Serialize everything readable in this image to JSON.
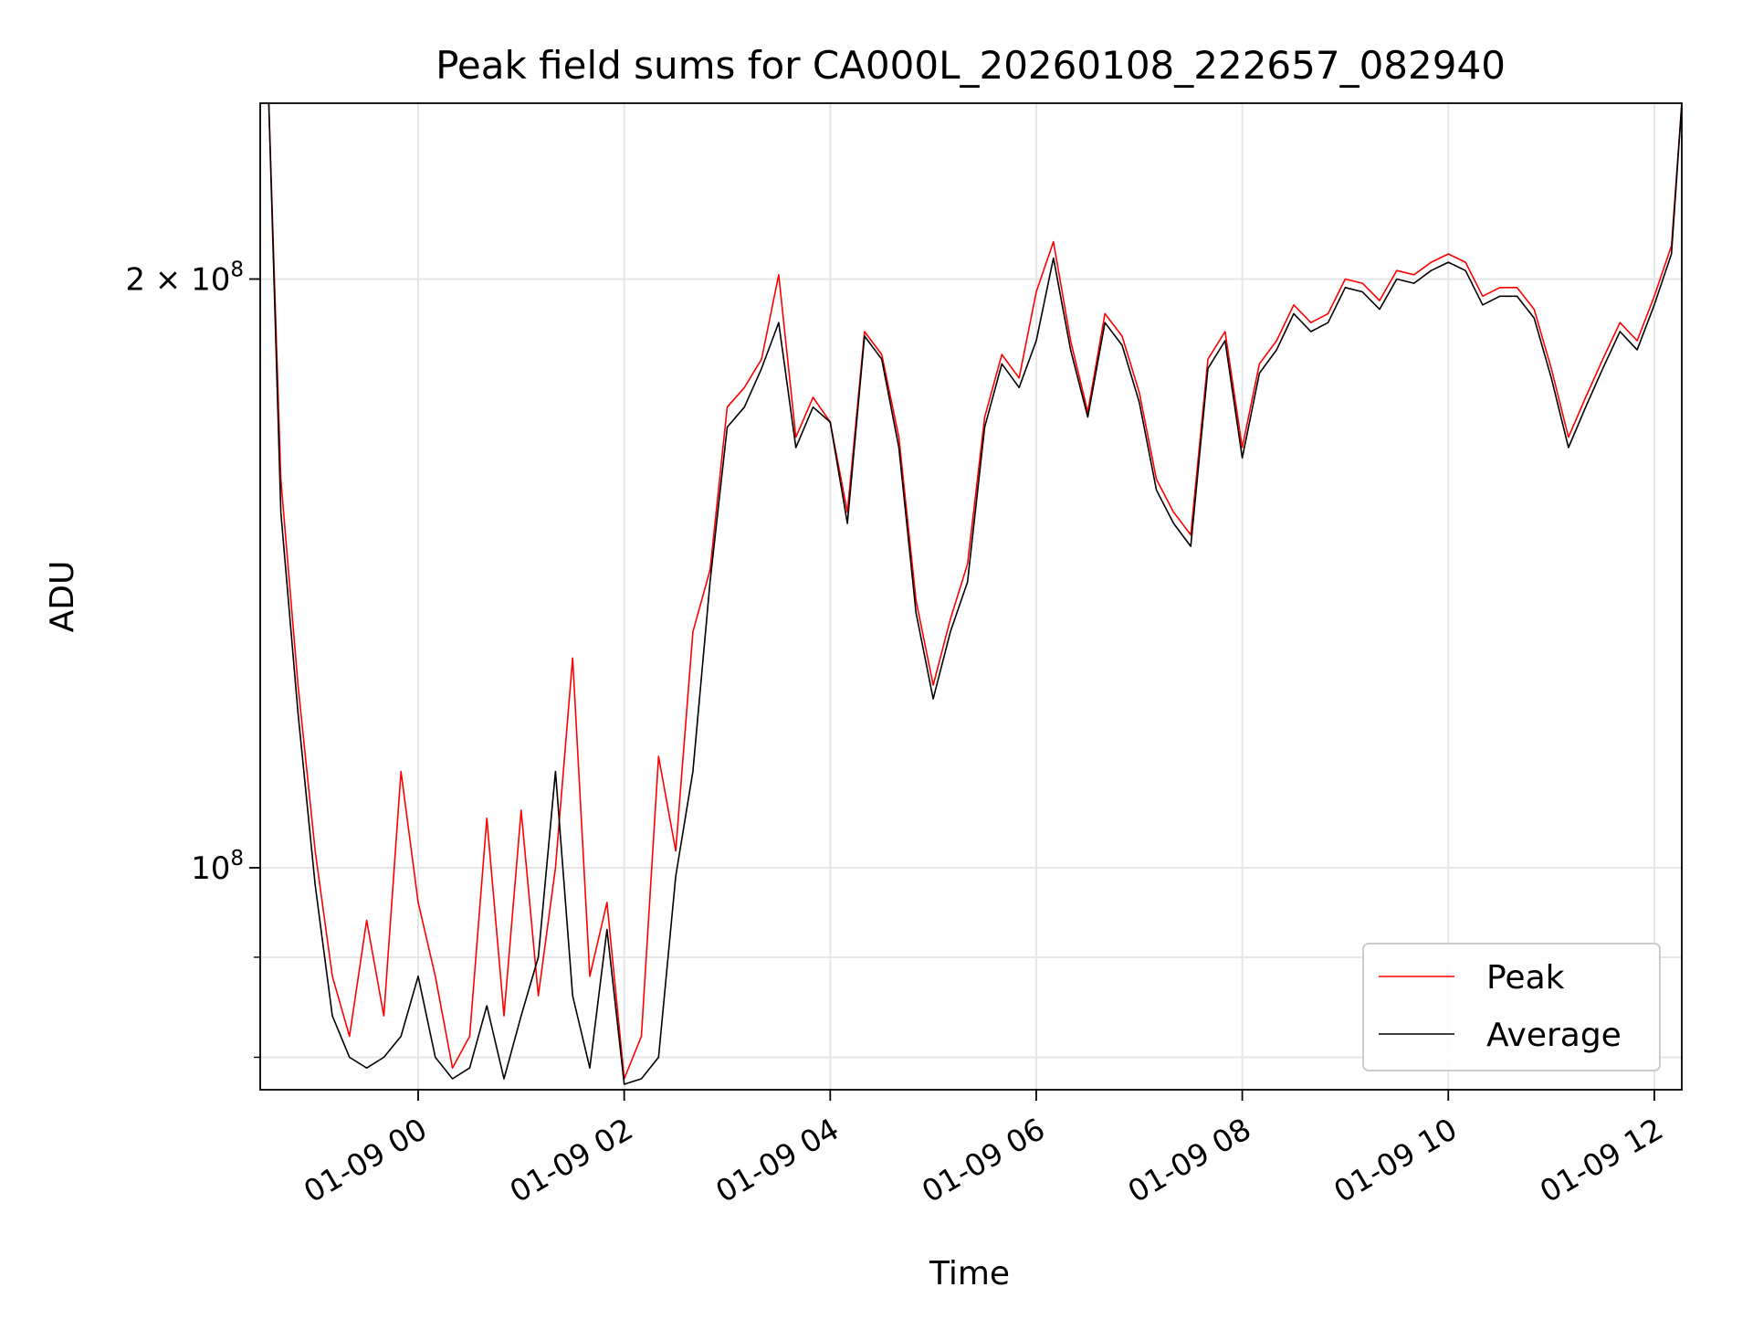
{
  "chart_data": {
    "type": "line",
    "title": "Peak field sums for CA000L_20260108_222657_082940",
    "xlabel": "Time",
    "ylabel": "ADU",
    "y_scale": "log",
    "ylim": [
      77000000,
      246000000
    ],
    "xlim": [
      "01-08 22:28",
      "01-09 12:16"
    ],
    "x_ticks": [
      {
        "value": "01-09 00:00",
        "label": "01-09 00"
      },
      {
        "value": "01-09 02:00",
        "label": "01-09 02"
      },
      {
        "value": "01-09 04:00",
        "label": "01-09 04"
      },
      {
        "value": "01-09 06:00",
        "label": "01-09 06"
      },
      {
        "value": "01-09 08:00",
        "label": "01-09 08"
      },
      {
        "value": "01-09 10:00",
        "label": "01-09 10"
      },
      {
        "value": "01-09 12:00",
        "label": "01-09 12"
      }
    ],
    "y_ticks_major": [
      {
        "value": 100000000,
        "label_base": "10",
        "label_exp": "8",
        "label_coef": ""
      },
      {
        "value": 200000000,
        "label_base": "10",
        "label_exp": "8",
        "label_coef": "2 × "
      }
    ],
    "y_ticks_minor": [
      80000000,
      90000000
    ],
    "grid": true,
    "legend_position": "bottom-right",
    "x": [
      "01-08 22:33",
      "01-08 22:40",
      "01-08 22:50",
      "01-08 23:00",
      "01-08 23:10",
      "01-08 23:20",
      "01-08 23:30",
      "01-08 23:40",
      "01-08 23:50",
      "01-09 00:00",
      "01-09 00:10",
      "01-09 00:20",
      "01-09 00:30",
      "01-09 00:40",
      "01-09 00:50",
      "01-09 01:00",
      "01-09 01:10",
      "01-09 01:20",
      "01-09 01:30",
      "01-09 01:40",
      "01-09 01:50",
      "01-09 02:00",
      "01-09 02:10",
      "01-09 02:20",
      "01-09 02:30",
      "01-09 02:40",
      "01-09 02:50",
      "01-09 03:00",
      "01-09 03:10",
      "01-09 03:20",
      "01-09 03:30",
      "01-09 03:40",
      "01-09 03:50",
      "01-09 04:00",
      "01-09 04:10",
      "01-09 04:20",
      "01-09 04:30",
      "01-09 04:40",
      "01-09 04:50",
      "01-09 05:00",
      "01-09 05:10",
      "01-09 05:20",
      "01-09 05:30",
      "01-09 05:40",
      "01-09 05:50",
      "01-09 06:00",
      "01-09 06:10",
      "01-09 06:20",
      "01-09 06:30",
      "01-09 06:40",
      "01-09 06:50",
      "01-09 07:00",
      "01-09 07:10",
      "01-09 07:20",
      "01-09 07:30",
      "01-09 07:40",
      "01-09 07:50",
      "01-09 08:00",
      "01-09 08:10",
      "01-09 08:20",
      "01-09 08:30",
      "01-09 08:40",
      "01-09 08:50",
      "01-09 09:00",
      "01-09 09:10",
      "01-09 09:20",
      "01-09 09:30",
      "01-09 09:40",
      "01-09 09:50",
      "01-09 10:00",
      "01-09 10:10",
      "01-09 10:20",
      "01-09 10:30",
      "01-09 10:40",
      "01-09 10:50",
      "01-09 11:00",
      "01-09 11:10",
      "01-09 11:20",
      "01-09 11:30",
      "01-09 11:40",
      "01-09 11:50",
      "01-09 12:00",
      "01-09 12:10",
      "01-09 12:16"
    ],
    "series": [
      {
        "name": "Peak",
        "color": "#ff0000",
        "values": [
          246000000,
          158000000,
          124000000,
          102000000,
          88000000,
          82000000,
          94000000,
          84000000,
          112000000,
          96000000,
          88000000,
          79000000,
          82000000,
          106000000,
          84000000,
          107000000,
          86000000,
          100000000,
          128000000,
          88000000,
          96000000,
          78000000,
          82000000,
          114000000,
          102000000,
          132000000,
          142000000,
          172000000,
          176000000,
          182000000,
          201000000,
          166000000,
          174000000,
          169000000,
          152000000,
          188000000,
          183000000,
          166000000,
          137000000,
          124000000,
          134000000,
          143000000,
          170000000,
          183000000,
          178000000,
          197000000,
          209000000,
          186000000,
          171000000,
          192000000,
          187000000,
          175000000,
          158000000,
          152000000,
          148000000,
          182000000,
          188000000,
          164000000,
          181000000,
          186000000,
          194000000,
          190000000,
          192000000,
          200000000,
          199000000,
          195000000,
          202000000,
          201000000,
          204000000,
          206000000,
          204000000,
          196000000,
          198000000,
          198000000,
          193000000,
          180000000,
          166000000,
          174000000,
          182000000,
          190000000,
          186000000,
          196000000,
          208000000,
          246000000
        ]
      },
      {
        "name": "Average",
        "color": "#000000",
        "values": [
          246000000,
          152000000,
          120000000,
          98000000,
          84000000,
          80000000,
          79000000,
          80000000,
          82000000,
          88000000,
          80000000,
          78000000,
          79000000,
          85000000,
          78000000,
          84000000,
          90000000,
          112000000,
          86000000,
          79000000,
          93000000,
          77500000,
          78000000,
          80000000,
          99000000,
          112000000,
          140000000,
          168000000,
          172000000,
          180000000,
          190000000,
          164000000,
          172000000,
          169000000,
          150000000,
          187000000,
          182000000,
          164000000,
          135000000,
          122000000,
          132000000,
          140000000,
          168000000,
          181000000,
          176000000,
          186000000,
          205000000,
          184000000,
          170000000,
          190000000,
          185000000,
          173000000,
          156000000,
          150000000,
          146000000,
          180000000,
          186000000,
          162000000,
          179000000,
          184000000,
          192000000,
          188000000,
          190000000,
          198000000,
          197000000,
          193000000,
          200000000,
          199000000,
          202000000,
          204000000,
          202000000,
          194000000,
          196000000,
          196000000,
          191000000,
          178000000,
          164000000,
          172000000,
          180000000,
          188000000,
          184000000,
          194000000,
          206000000,
          246000000
        ]
      }
    ]
  }
}
